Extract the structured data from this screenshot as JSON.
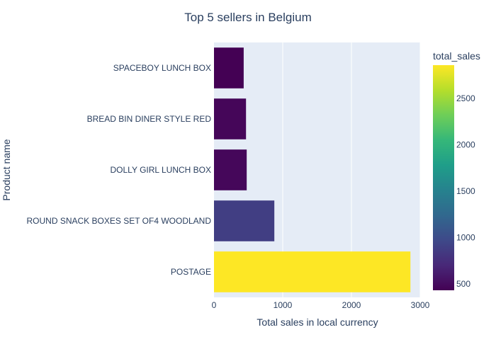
{
  "chart_data": {
    "type": "bar",
    "orientation": "horizontal",
    "title": "Top 5 sellers in Belgium",
    "xlabel": "Total sales in local currency",
    "ylabel": "Product name",
    "categories": [
      "SPACEBOY LUNCH BOX",
      "BREAD BIN DINER STYLE RED",
      "DOLLY GIRL LUNCH BOX",
      "ROUND SNACK BOXES SET OF4 WOODLAND",
      "POSTAGE"
    ],
    "values": [
      432,
      466,
      476,
      878,
      2858
    ],
    "xlim": [
      0,
      3000
    ],
    "xticks": [
      0,
      1000,
      2000,
      3000
    ],
    "grid": true,
    "colorbar": {
      "title": "total_sales",
      "colorscale": "Viridis",
      "range": [
        432,
        2858
      ],
      "ticks": [
        500,
        1000,
        1500,
        2000,
        2500
      ]
    }
  }
}
